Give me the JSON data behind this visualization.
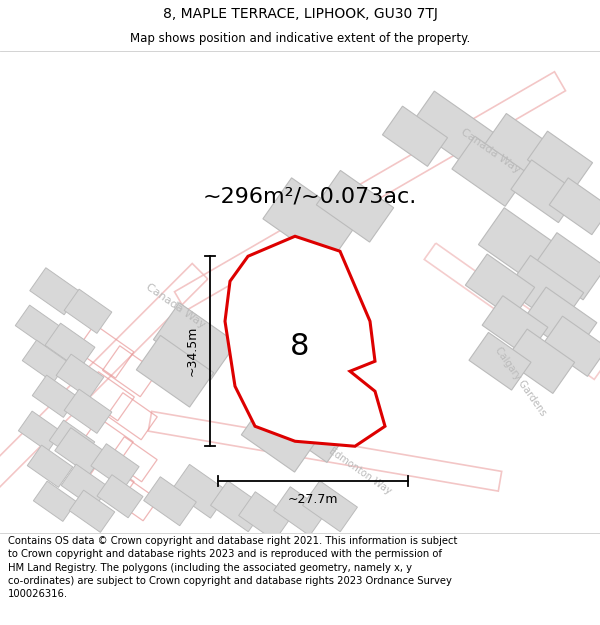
{
  "title": "8, MAPLE TERRACE, LIPHOOK, GU30 7TJ",
  "subtitle": "Map shows position and indicative extent of the property.",
  "area_label": "~296m²/~0.073ac.",
  "plot_number": "8",
  "dim_width": "~27.7m",
  "dim_height": "~34.5m",
  "road_label_canada": "Canada Way",
  "road_label_canada2": "Canada Way",
  "road_label_edmonton": "Edmonton Way",
  "road_label_calgary": "Calgary Gardens",
  "footer": "Contains OS data © Crown copyright and database right 2021. This information is subject to Crown copyright and database rights 2023 and is reproduced with the permission of HM Land Registry. The polygons (including the associated geometry, namely x, y co-ordinates) are subject to Crown copyright and database rights 2023 Ordnance Survey 100026316.",
  "bg_color": "#ffffff",
  "map_bg": "#f7f5f5",
  "plot_fill": "#e8e8e8",
  "plot_outline": "#dd0000",
  "building_fill": "#d8d8d8",
  "building_edge": "#bbbbbb",
  "road_pink": "#f0b8b8",
  "road_pink2": "#e89898",
  "title_fontsize": 10,
  "subtitle_fontsize": 8.5,
  "footer_fontsize": 7.2,
  "area_fontsize": 16,
  "dim_fontsize": 9,
  "number_fontsize": 22,
  "road_label_color": "#bbbbbb",
  "road_label_size": 8
}
